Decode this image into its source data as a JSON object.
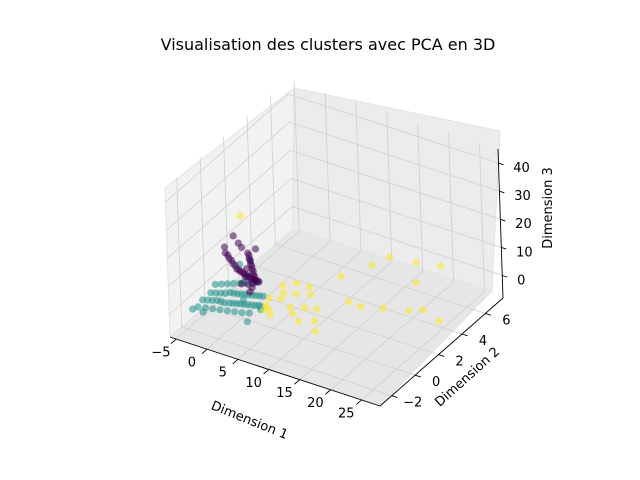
{
  "chart_data": {
    "type": "scatter",
    "title": "Visualisation des clusters avec PCA en 3D",
    "xlabel": "Dimension 1",
    "ylabel": "Dimension 2",
    "zlabel": "Dimension 3",
    "xticks": [
      "−5",
      "0",
      "5",
      "10",
      "15",
      "20",
      "25"
    ],
    "yticks": [
      "−2",
      "0",
      "2",
      "4",
      "6"
    ],
    "zticks": [
      "0",
      "10",
      "20",
      "30",
      "40"
    ],
    "xlim": [
      -6,
      28
    ],
    "ylim": [
      -3,
      7.5
    ],
    "zlim": [
      -8,
      45
    ],
    "grid": true,
    "colors": [
      "#440154",
      "#21918c",
      "#fde725"
    ],
    "series": [
      {
        "points": [
          [
            -3.5,
            0.5,
            13
          ],
          [
            -3.4,
            0.5,
            11
          ],
          [
            -3.2,
            0.6,
            10
          ],
          [
            -3.0,
            0.6,
            9
          ],
          [
            -2.8,
            0.7,
            8
          ],
          [
            -2.6,
            0.7,
            7
          ],
          [
            -2.4,
            0.8,
            6
          ],
          [
            -2.2,
            0.8,
            5
          ],
          [
            -2.0,
            0.9,
            4.5
          ],
          [
            -1.8,
            0.9,
            4
          ],
          [
            -1.6,
            1.0,
            3.5
          ],
          [
            -1.4,
            1.0,
            3
          ],
          [
            -1.2,
            1.1,
            2.5
          ],
          [
            -1.0,
            1.1,
            2
          ],
          [
            -0.8,
            1.2,
            1.5
          ],
          [
            -0.6,
            1.2,
            1
          ],
          [
            -0.4,
            1.3,
            0.8
          ],
          [
            -0.2,
            1.3,
            0.5
          ],
          [
            0.0,
            1.4,
            0.2
          ],
          [
            0.2,
            1.4,
            0
          ],
          [
            -1.9,
            1.6,
            8
          ],
          [
            -1.7,
            1.6,
            7.3
          ],
          [
            -1.5,
            1.5,
            6.6
          ],
          [
            -1.3,
            1.5,
            6
          ],
          [
            -1.1,
            1.4,
            5.4
          ],
          [
            -0.9,
            1.4,
            4.8
          ],
          [
            -0.7,
            1.3,
            4.2
          ],
          [
            -0.5,
            1.3,
            3.6
          ],
          [
            -0.3,
            1.2,
            3
          ],
          [
            -0.1,
            1.2,
            2.4
          ],
          [
            0.1,
            1.1,
            1.8
          ],
          [
            0.3,
            1.1,
            1.2
          ],
          [
            -3.0,
            1.0,
            15.5
          ],
          [
            -2.6,
            1.2,
            12.5
          ],
          [
            -2.3,
            1.3,
            10.8
          ],
          [
            -1.0,
            1.8,
            9.4
          ],
          [
            0.4,
            0.8,
            1.8
          ],
          [
            0.6,
            0.6,
            1.1
          ],
          [
            0.2,
            0.5,
            2.4
          ],
          [
            -0.5,
            0.3,
            2.8
          ],
          [
            0.0,
            0.4,
            5.2
          ],
          [
            -0.6,
            0.8,
            6.3
          ],
          [
            1.0,
            0.2,
            1.4
          ]
        ]
      },
      {
        "points": [
          [
            -4.8,
            -0.8,
            -2
          ],
          [
            -4.4,
            -0.6,
            -2.5
          ],
          [
            -4.0,
            -0.4,
            -3
          ],
          [
            -3.6,
            -0.2,
            -3.5
          ],
          [
            -3.2,
            -0.1,
            -4
          ],
          [
            -2.8,
            0.0,
            -4.5
          ],
          [
            -2.4,
            0.2,
            -5
          ],
          [
            -2.0,
            0.3,
            -5.2
          ],
          [
            -1.6,
            0.4,
            -5.4
          ],
          [
            -1.2,
            0.5,
            -5.6
          ],
          [
            -0.8,
            0.6,
            -5.8
          ],
          [
            -0.4,
            0.7,
            -6
          ],
          [
            0.0,
            0.8,
            -6.2
          ],
          [
            0.4,
            0.9,
            -6.4
          ],
          [
            0.8,
            1.0,
            -6.5
          ],
          [
            1.2,
            1.0,
            -6.6
          ],
          [
            -4.6,
            -0.2,
            -1.5
          ],
          [
            -4.2,
            0.0,
            -2
          ],
          [
            -3.8,
            0.2,
            -2.5
          ],
          [
            -3.4,
            0.4,
            -3
          ],
          [
            -3.0,
            0.6,
            -3.2
          ],
          [
            -2.6,
            0.7,
            -3.5
          ],
          [
            -2.2,
            0.8,
            -3.8
          ],
          [
            -1.8,
            0.9,
            -4
          ],
          [
            -1.4,
            1.0,
            -4.2
          ],
          [
            -1.0,
            1.1,
            -4.4
          ],
          [
            -0.6,
            1.2,
            -4.6
          ],
          [
            -0.2,
            1.3,
            -4.8
          ],
          [
            0.2,
            1.4,
            -5
          ],
          [
            0.6,
            1.5,
            -5.2
          ],
          [
            -4.8,
            -1.2,
            -3
          ],
          [
            -4.0,
            -1.0,
            -3.5
          ],
          [
            -3.2,
            -0.8,
            -4
          ],
          [
            -2.4,
            -0.6,
            -4.5
          ],
          [
            -1.6,
            -0.4,
            -5
          ],
          [
            -0.8,
            -0.2,
            -5.5
          ],
          [
            0.0,
            0.0,
            -6
          ],
          [
            0.8,
            0.2,
            -6.3
          ],
          [
            -5.0,
            0.4,
            -1
          ],
          [
            -4.4,
            0.6,
            -1.2
          ],
          [
            -3.8,
            0.8,
            -1.4
          ],
          [
            -3.2,
            1.0,
            -1.6
          ],
          [
            -2.6,
            1.2,
            -1.8
          ],
          [
            -2.0,
            1.4,
            -2
          ],
          [
            -1.4,
            1.6,
            -2.2
          ],
          [
            -0.8,
            1.8,
            -2.4
          ],
          [
            -3.9,
            1.9,
            1.5
          ],
          [
            -2.5,
            2.1,
            3.2
          ],
          [
            -1.4,
            0.9,
            0.5
          ],
          [
            -0.3,
            0.3,
            -2.8
          ],
          [
            1.7,
            0.7,
            -6.2
          ],
          [
            1.6,
            -0.4,
            -6.6
          ],
          [
            -4.9,
            -1.6,
            -2.4
          ],
          [
            -3.6,
            -1.4,
            -3.3
          ],
          [
            -2.1,
            1.7,
            -0.6
          ]
        ]
      },
      {
        "points": [
          [
            -2.9,
            1.6,
            20.5
          ],
          [
            24.5,
            4.2,
            13
          ],
          [
            2.5,
            2.2,
            -2.5
          ],
          [
            4.2,
            2.5,
            -1.5
          ],
          [
            6.0,
            2.6,
            -2
          ],
          [
            3.5,
            1.5,
            -4
          ],
          [
            9.5,
            3.5,
            1
          ],
          [
            12.5,
            4.6,
            3
          ],
          [
            5.5,
            1.2,
            -4.5
          ],
          [
            7.5,
            1.4,
            -4
          ],
          [
            9.5,
            1.4,
            -3
          ],
          [
            13.0,
            2.3,
            -1
          ],
          [
            15.5,
            2.0,
            0
          ],
          [
            15.0,
            4.8,
            7
          ],
          [
            18.5,
            5.2,
            6
          ],
          [
            20.0,
            4.4,
            3
          ],
          [
            22.5,
            3.6,
            -2
          ],
          [
            25.5,
            3.4,
            -3
          ],
          [
            18.0,
            2.6,
            -1
          ],
          [
            8.0,
            0.6,
            -5.5
          ],
          [
            10.0,
            0.9,
            -5
          ],
          [
            11.5,
            0.2,
            -5
          ],
          [
            4.0,
            0.3,
            -5
          ],
          [
            2.0,
            1.0,
            -5.5
          ],
          [
            3.0,
            0.7,
            -5.2
          ],
          [
            6.5,
            0.9,
            -5
          ],
          [
            1.8,
            1.4,
            -4.6
          ],
          [
            3.2,
            1.9,
            -3.5
          ],
          [
            5.0,
            2.0,
            -3
          ],
          [
            7.0,
            2.2,
            -2.6
          ],
          [
            2.6,
            0.5,
            -4.8
          ],
          [
            21.0,
            3.2,
            -1.8
          ]
        ]
      }
    ]
  }
}
